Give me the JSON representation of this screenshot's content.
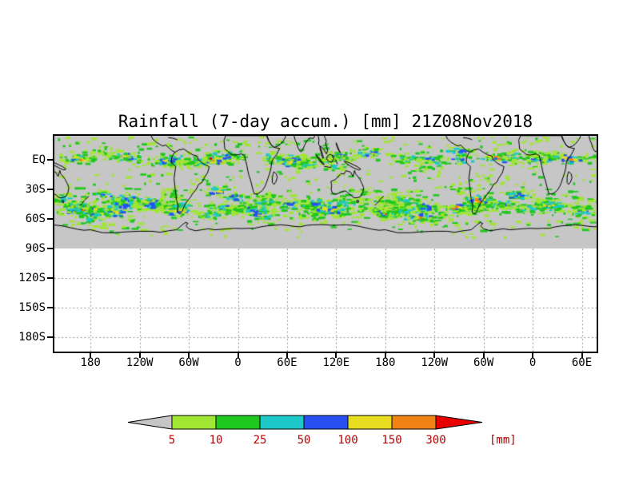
{
  "title": "Rainfall (7-day accum.) [mm] 21Z08Nov2018",
  "axes": {
    "lat_labels": [
      "EQ",
      "30S",
      "60S",
      "90S",
      "120S",
      "150S",
      "180S"
    ],
    "lon_labels": [
      "180",
      "120W",
      "60W",
      "0",
      "60E",
      "120E",
      "180",
      "120W",
      "60W",
      "0",
      "60E"
    ]
  },
  "colorbar": {
    "tick_labels": [
      "5",
      "10",
      "25",
      "50",
      "100",
      "150",
      "300"
    ],
    "unit_label": "[mm]",
    "segment_colors": [
      "#a0e632",
      "#1fc81f",
      "#1ec8c8",
      "#2850f0",
      "#e8dc20",
      "#f08214"
    ],
    "arrow_low_color": "#c6c6c6",
    "arrow_high_color": "#e80000",
    "label_color": "#b40000"
  },
  "map": {
    "background_color": "#ffffff",
    "no_data_color": "#c6c6c6",
    "coastline_color": "#000000",
    "grid_color": "#777777"
  },
  "chart_data": {
    "type": "heatmap",
    "title": "Rainfall (7-day accum.) [mm] 21Z08Nov2018",
    "variable": "Rainfall, 7-day accumulation",
    "unit": "mm",
    "valid_time": "21Z08Nov2018",
    "levels_mm": [
      5,
      10,
      25,
      50,
      100,
      150,
      300
    ],
    "palette": [
      "#c6c6c6",
      "#a0e632",
      "#1fc81f",
      "#1ec8c8",
      "#2850f0",
      "#e8dc20",
      "#f08214",
      "#e80000"
    ],
    "lat_tick_labels": [
      "EQ",
      "30S",
      "60S",
      "90S",
      "120S",
      "150S",
      "180S"
    ],
    "lon_tick_labels": [
      "180",
      "120W",
      "60W",
      "0",
      "60E",
      "120E",
      "180",
      "120W",
      "60W",
      "0",
      "60E"
    ],
    "legend_position": "bottom",
    "grid": "dotted",
    "shaded_region": "global band from about 24N down to 90S; area south of 90S is blank",
    "notes": "Heaviest rainfall along the ITCZ band near the equator and in the Southern Ocean storm track between about 35S and 65S; gray shading indicates less than 5 mm."
  }
}
